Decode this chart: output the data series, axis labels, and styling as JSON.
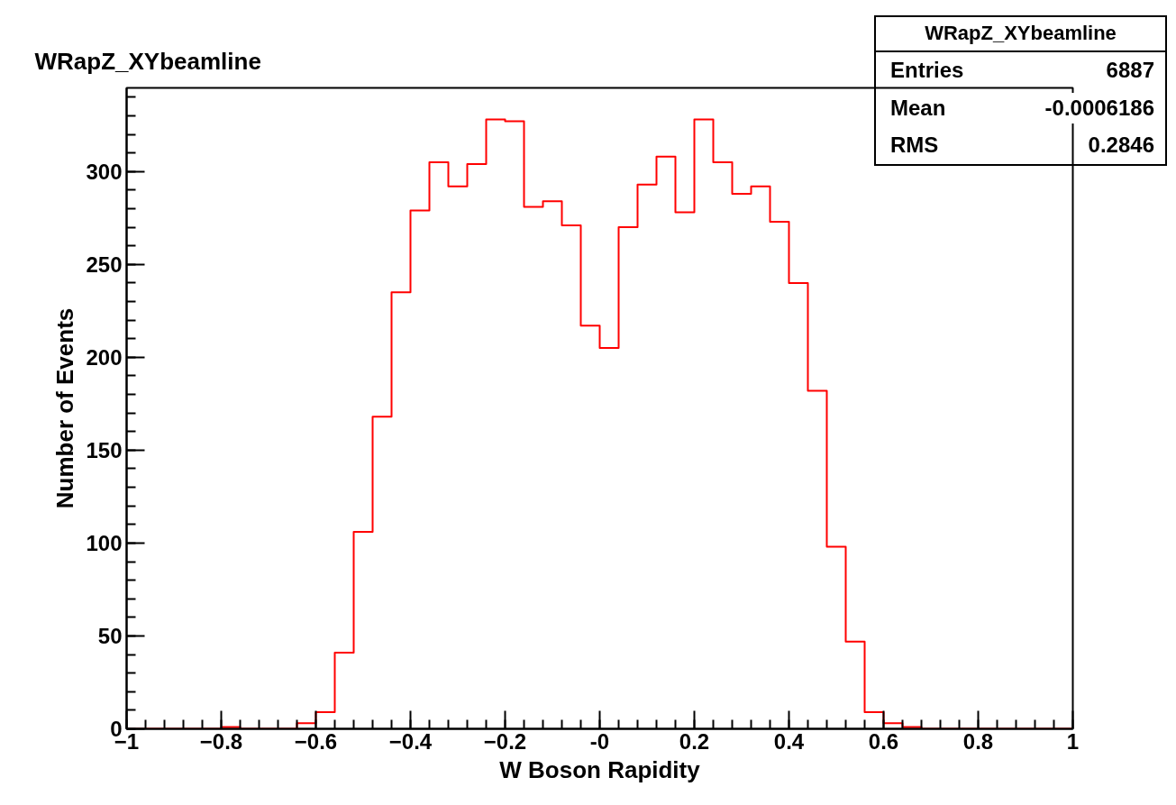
{
  "chart_data": {
    "type": "histogram",
    "title": "WRapZ_XYbeamline",
    "xlabel": "W Boson Rapidity",
    "ylabel": "Number of Events",
    "bins": [
      -1.0,
      -0.96,
      -0.92,
      -0.88,
      -0.84,
      -0.8,
      -0.76,
      -0.72,
      -0.68,
      -0.64,
      -0.6,
      -0.56,
      -0.52,
      -0.48,
      -0.44,
      -0.4,
      -0.36,
      -0.32,
      -0.28,
      -0.24,
      -0.2,
      -0.16,
      -0.12,
      -0.08,
      -0.04,
      0.0,
      0.04,
      0.08,
      0.12,
      0.16,
      0.2,
      0.24,
      0.28,
      0.32,
      0.36,
      0.4,
      0.44,
      0.48,
      0.52,
      0.56,
      0.6,
      0.64,
      0.68,
      0.72,
      0.76,
      0.8,
      0.84,
      0.88,
      0.92,
      0.96,
      1.0
    ],
    "values": [
      0,
      0,
      0,
      0,
      0,
      1,
      0,
      0,
      0,
      3,
      9,
      41,
      106,
      168,
      235,
      279,
      305,
      292,
      304,
      328,
      327,
      281,
      284,
      271,
      217,
      205,
      270,
      293,
      308,
      278,
      328,
      305,
      288,
      292,
      273,
      240,
      182,
      98,
      47,
      9,
      3,
      1,
      0,
      0,
      0,
      0,
      0,
      0,
      0,
      0
    ],
    "color": "#ff0000",
    "xlim": [
      -1,
      1
    ],
    "ylim": [
      0,
      345
    ],
    "xticks": [
      -1,
      -0.8,
      -0.6,
      -0.4,
      -0.2,
      {
        "value": 0,
        "label": "-0"
      },
      0.2,
      0.4,
      0.6,
      0.8,
      1
    ],
    "yticks": [
      0,
      50,
      100,
      150,
      200,
      250,
      300
    ],
    "grid": false,
    "annotations": [
      "WRapZ_XYbeamline",
      "Entries",
      "6887",
      "Mean",
      "-0.0006186",
      "RMS",
      "0.2846"
    ]
  }
}
